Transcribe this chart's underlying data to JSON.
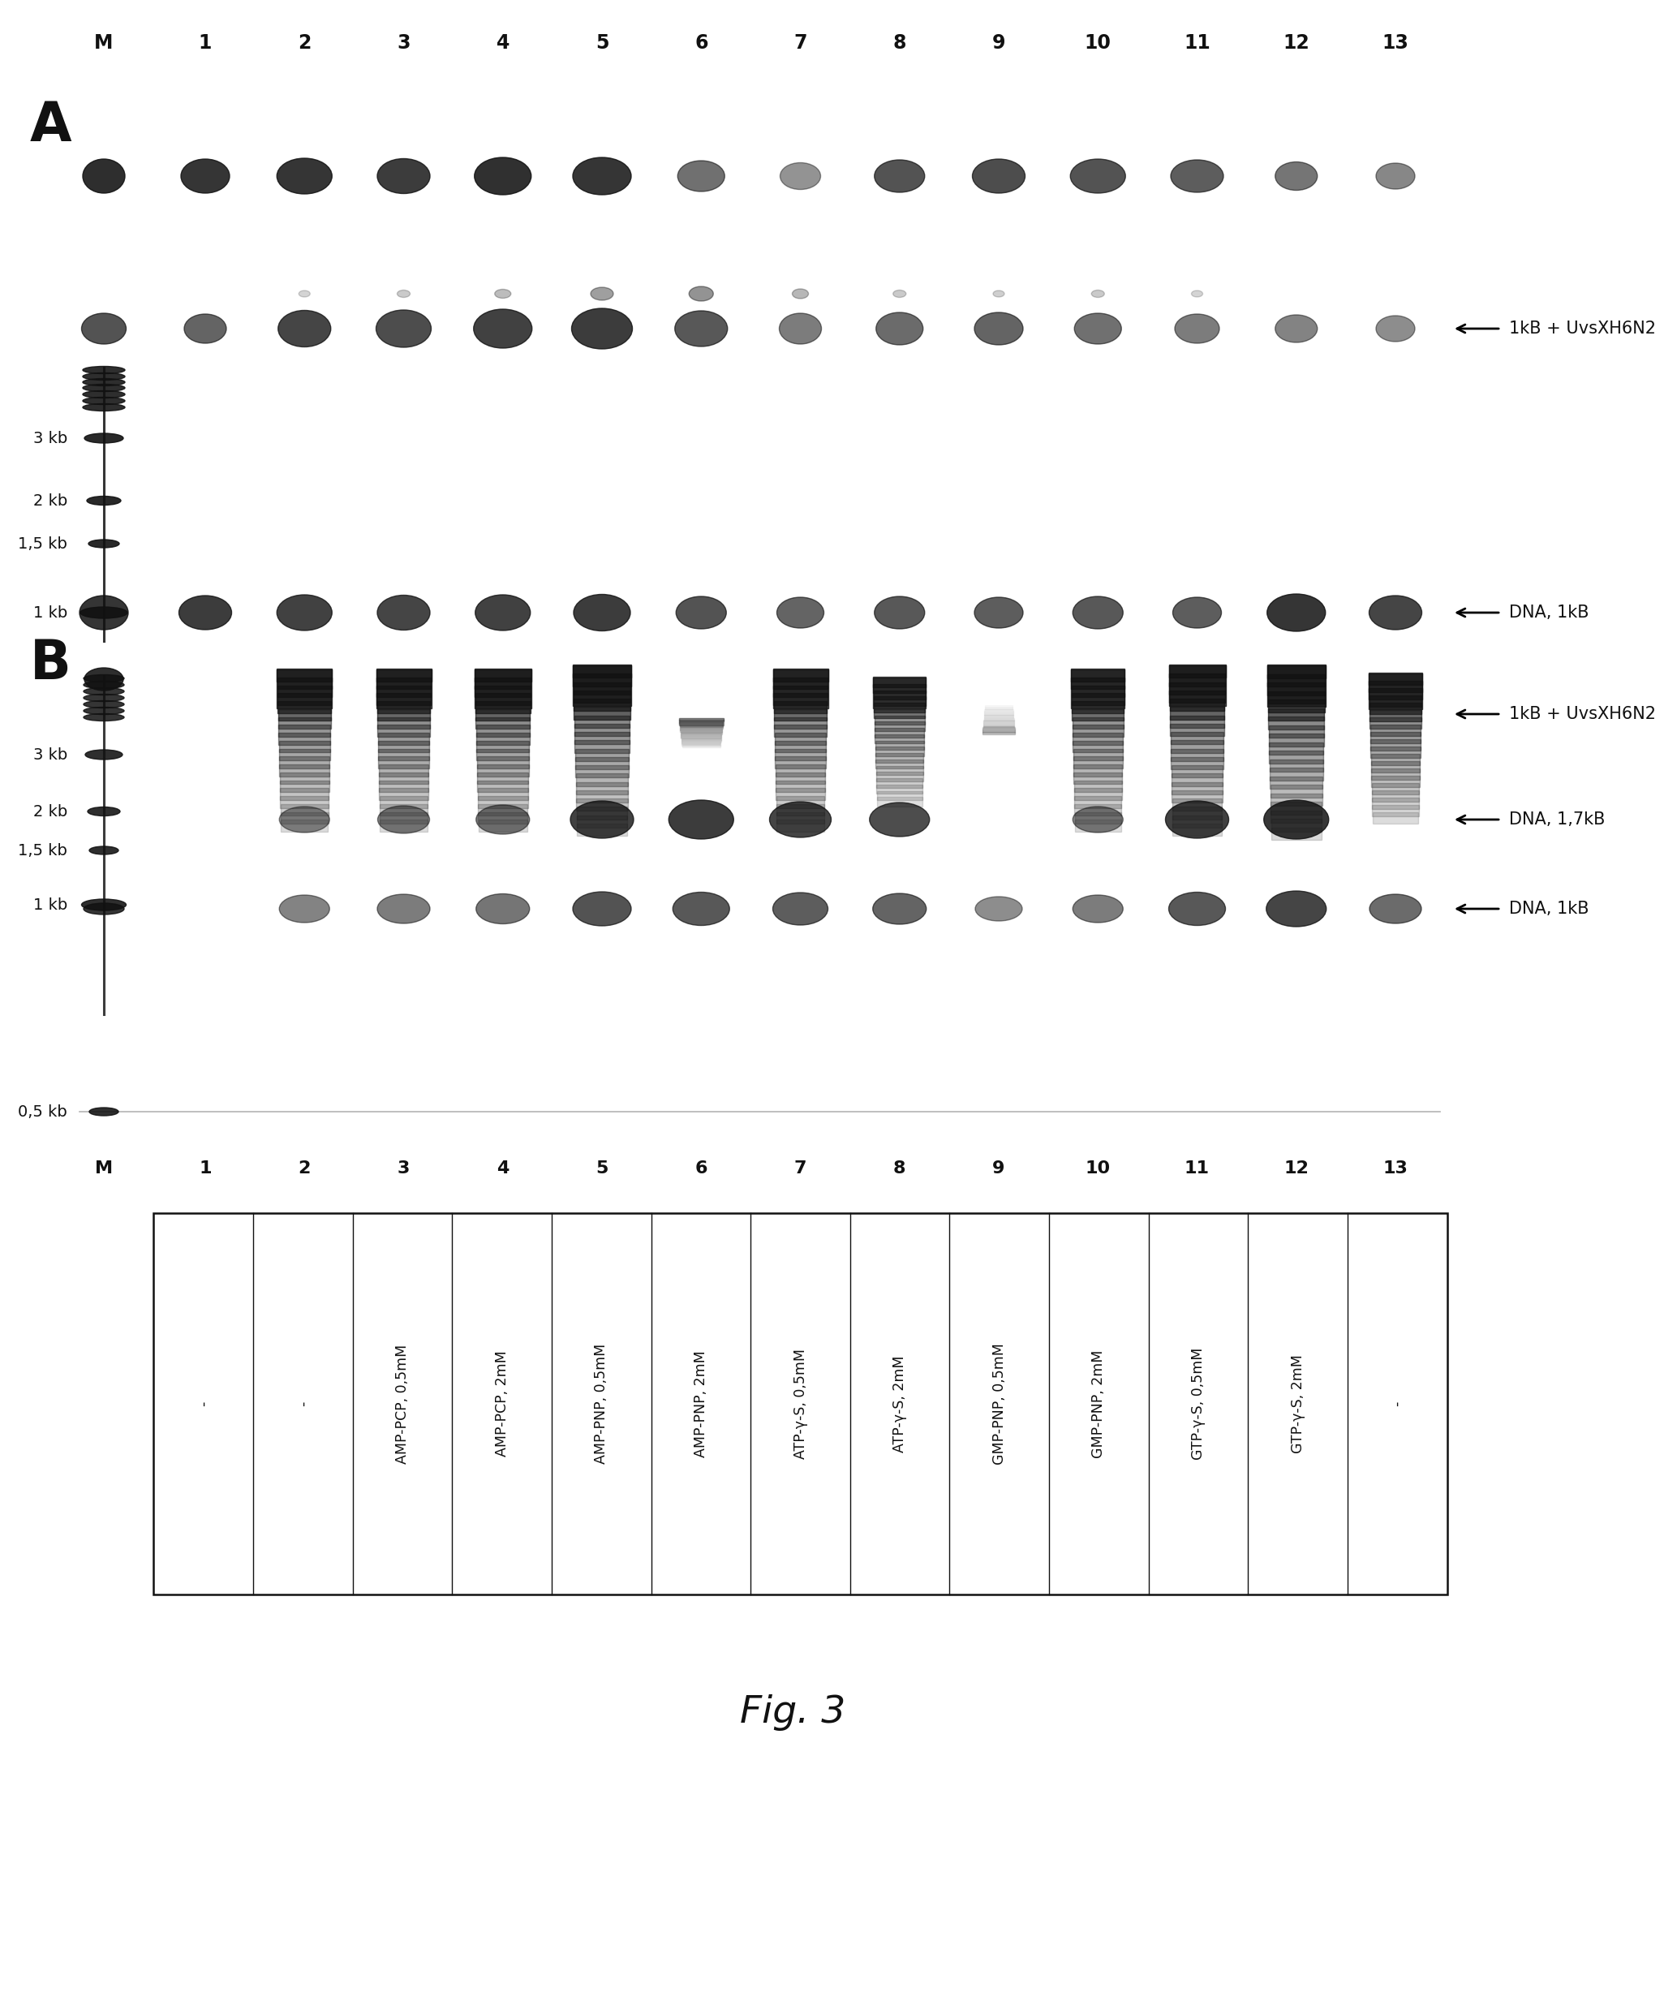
{
  "title": "Fig. 3",
  "panel_A_label": "A",
  "panel_B_label": "B",
  "lane_labels_top": [
    "M",
    "1",
    "2",
    "3",
    "4",
    "5",
    "6",
    "7",
    "8",
    "9",
    "10",
    "11",
    "12",
    "13"
  ],
  "lane_labels_bottom": [
    "M",
    "1",
    "2",
    "3",
    "4",
    "5",
    "6",
    "7",
    "8",
    "9",
    "10",
    "11",
    "12",
    "13"
  ],
  "table_labels": [
    "-",
    "-",
    "AMP-PCP, 0,5mM",
    "AMP-PCP, 2mM",
    "AMP-PNP, 0,5mM",
    "AMP-PNP, 2mM",
    "ATP-γ-S, 0,5mM",
    "ATP-γ-S, 2mM",
    "GMP-PNP, 0,5mM",
    "GMP-PNP, 2mM",
    "GTP-γ-S, 0,5mM",
    "GTP-γ-S, 2mM",
    "-"
  ],
  "arrow_labels_A_top": "1kB + UvsXH6N2",
  "arrow_labels_A_bottom": "DNA, 1kB",
  "arrow_labels_B_top": "1kB + UvsXH6N2",
  "arrow_labels_B_mid": "DNA, 1,7kB",
  "arrow_labels_B_bot": "DNA, 1kB",
  "bg_color": "#ffffff",
  "text_color": "#111111"
}
